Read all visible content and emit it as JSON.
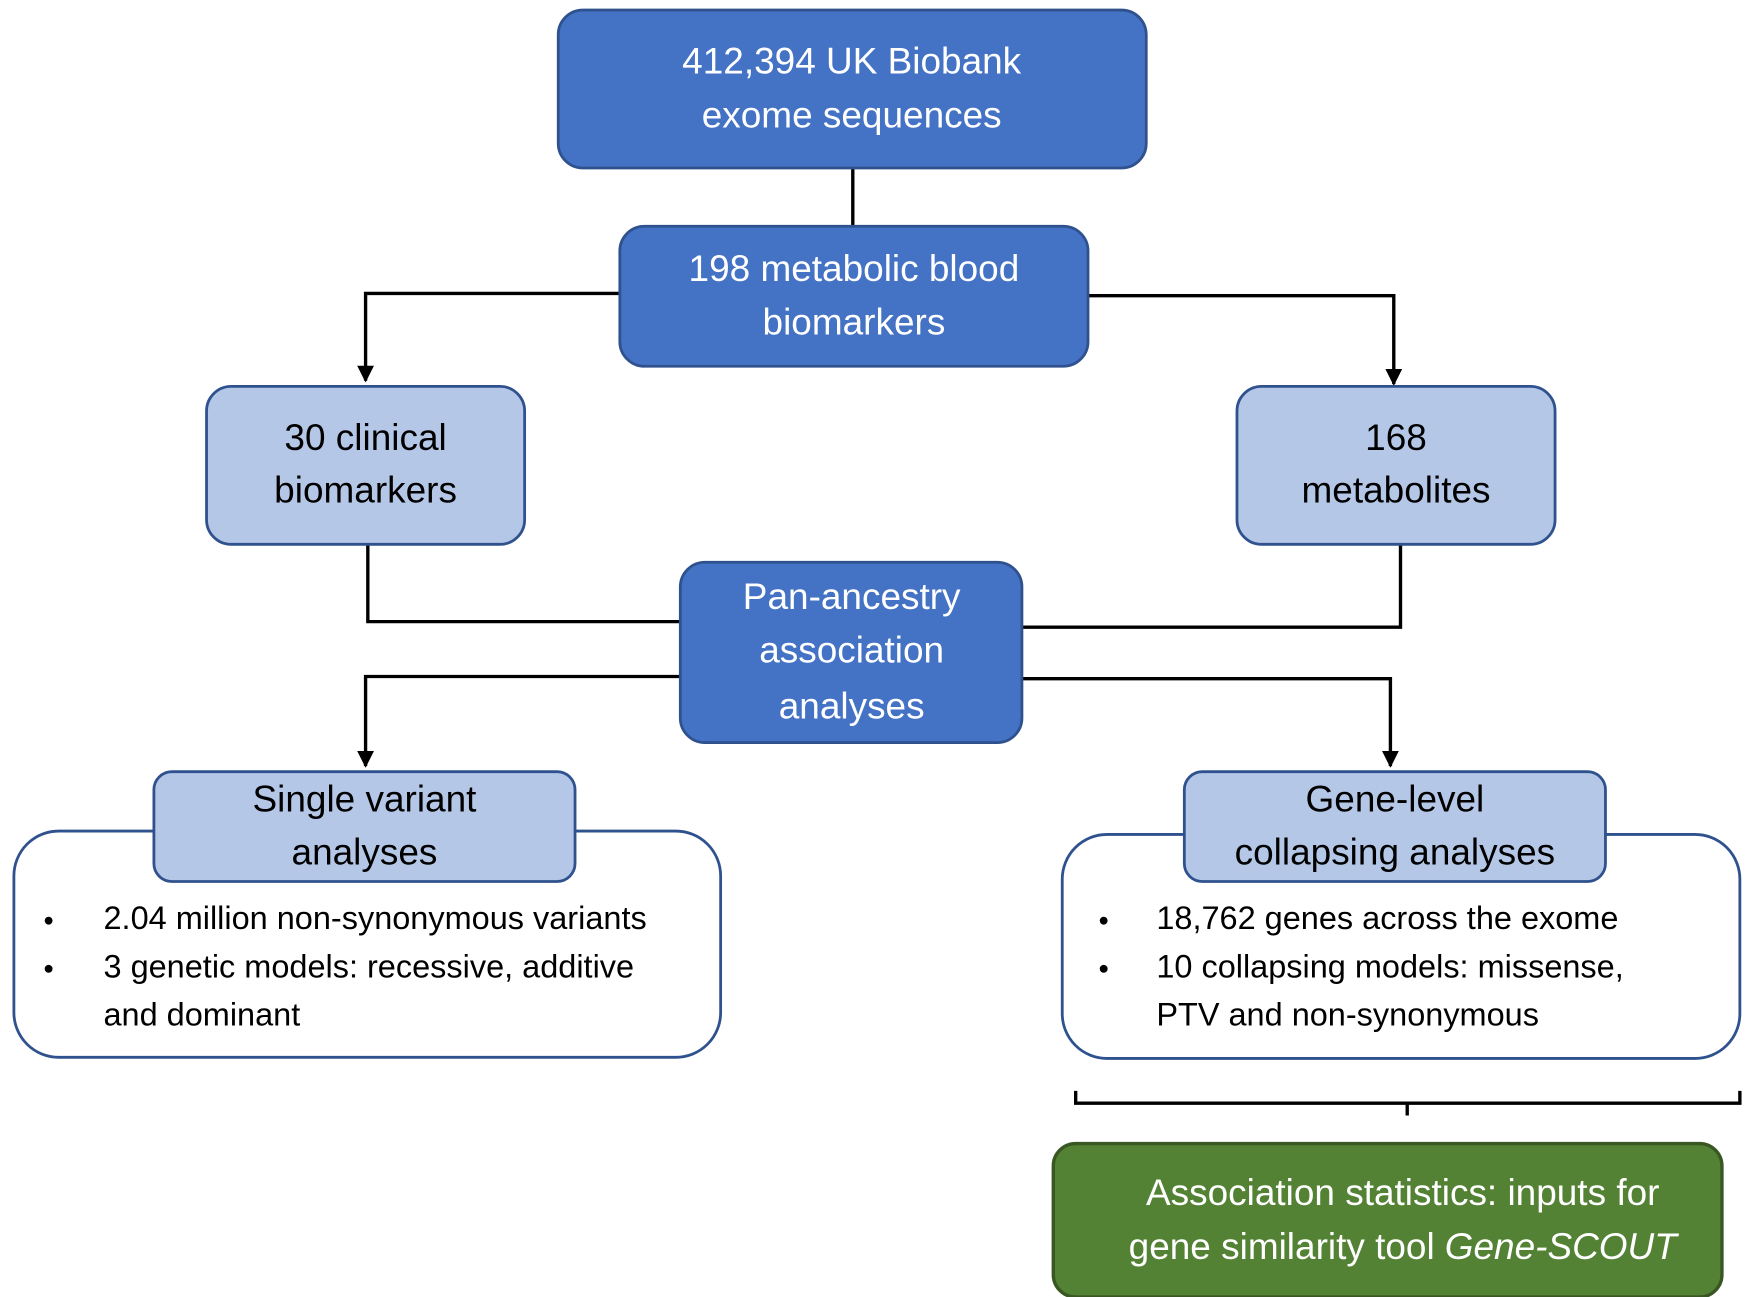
{
  "nodes": [
    {
      "lines": [
        "412,394 UK Biobank",
        "exome sequences"
      ]
    },
    {
      "lines": [
        "198 metabolic blood",
        "biomarkers"
      ]
    },
    {
      "lines": [
        "30 clinical",
        "biomarkers"
      ]
    },
    {
      "lines": [
        "168",
        "metabolites"
      ]
    },
    {
      "lines": [
        "Pan-ancestry",
        "association",
        "analyses"
      ]
    },
    {
      "lines": [
        "Single variant",
        "analyses"
      ],
      "bullets": [
        {
          "lines": [
            "2.04 million non-synonymous variants"
          ]
        },
        {
          "lines": [
            "3 genetic models: recessive, additive",
            "and dominant"
          ]
        }
      ]
    },
    {
      "lines": [
        "Gene-level",
        "collapsing analyses"
      ],
      "bullets": [
        {
          "lines": [
            "18,762 genes across the exome"
          ]
        },
        {
          "lines": [
            "10 collapsing models: missense,",
            "PTV and non-synonymous"
          ]
        }
      ]
    },
    {
      "lines": [
        "Association statistics: inputs for",
        "gene similarity tool"
      ],
      "italic": "Gene-SCOUT"
    }
  ]
}
